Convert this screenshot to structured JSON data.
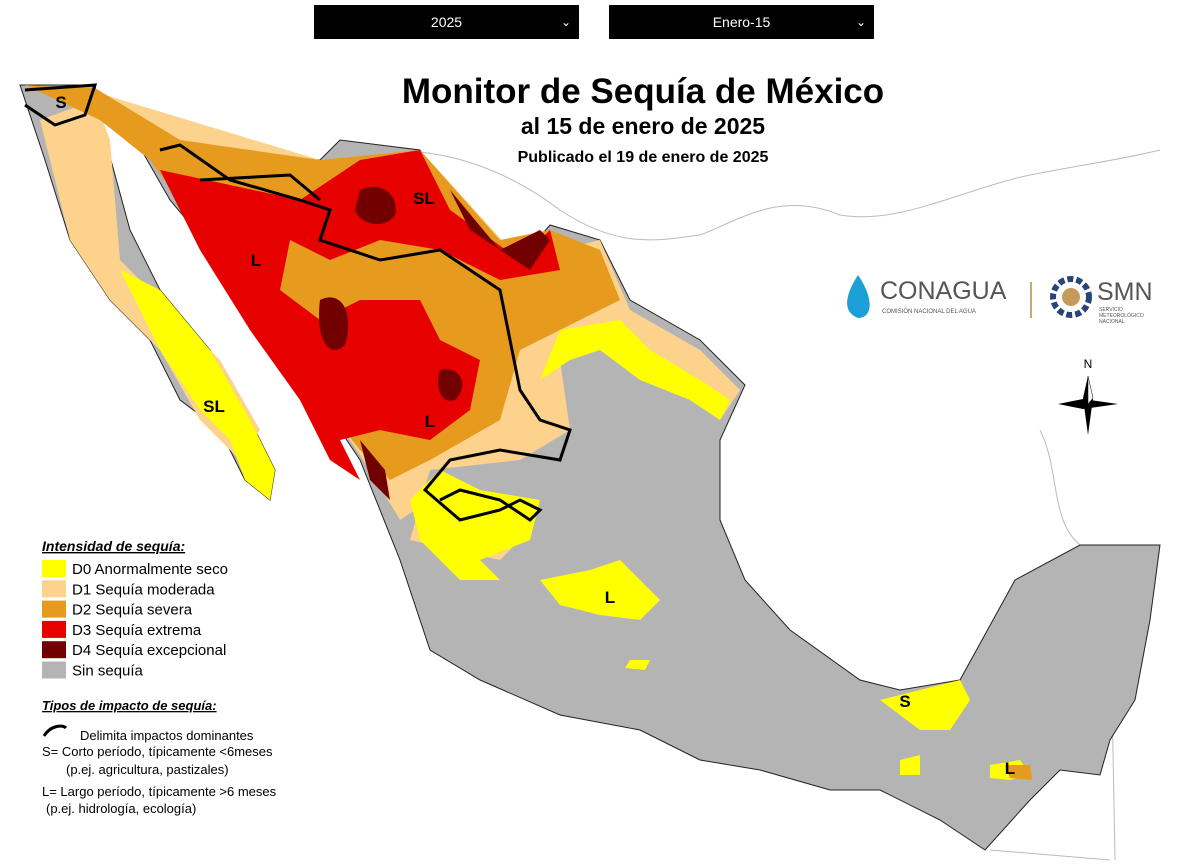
{
  "controls": {
    "year": "2025",
    "date": "Enero-15"
  },
  "header": {
    "title": "Monitor de Sequía de México",
    "subtitle": "al 15 de enero de 2025",
    "published": "Publicado el 19 de enero de 2025"
  },
  "map": {
    "labels": [
      "S",
      "L",
      "SL",
      "SL",
      "L",
      "L",
      "S",
      "L"
    ]
  },
  "logos": {
    "conagua": "CONAGUA",
    "conagua_sub": "COMISIÓN NACIONAL DEL AGUA",
    "smn": "SMN",
    "smn_sub": [
      "SERVICIO",
      "METEOROLÓGICO",
      "NACIONAL"
    ]
  },
  "compass": "N",
  "legend": {
    "title": "Intensidad de sequía:",
    "items": [
      {
        "label": "D0 Anormalmente seco",
        "color": "#ffff00"
      },
      {
        "label": "D1 Sequía moderada",
        "color": "#fcd28c"
      },
      {
        "label": "D2 Sequía severa",
        "color": "#e69a1e"
      },
      {
        "label": "D3 Sequía extrema",
        "color": "#e60000"
      },
      {
        "label": "D4 Sequía excepcional",
        "color": "#730000"
      },
      {
        "label": "Sin sequía",
        "color": "#b4b4b4"
      }
    ]
  },
  "impact": {
    "title": "Tipos de impacto de sequía:",
    "symbol": "Delimita impactos dominantes",
    "lines": [
      "S= Corto período, típicamente <6meses",
      "(p.ej. agricultura, pastizales)",
      "L= Largo período, típicamente >6 meses",
      "(p.ej. hidrología, ecología)"
    ]
  }
}
